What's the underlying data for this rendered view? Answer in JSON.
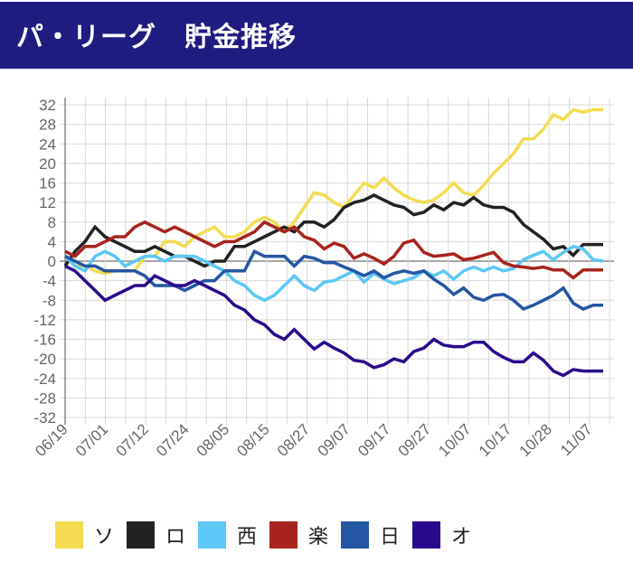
{
  "header": {
    "title": "パ・リーグ　貯金推移"
  },
  "chart_data": {
    "type": "line",
    "title": "パ・リーグ　貯金推移",
    "xlabel": "",
    "ylabel": "",
    "ylim": [
      -32,
      32
    ],
    "yticks": [
      32,
      28,
      24,
      20,
      16,
      12,
      8,
      4,
      0,
      -4,
      -8,
      -12,
      -16,
      -20,
      -24,
      -28,
      -32
    ],
    "xtick_labels": [
      "06/19",
      "07/01",
      "07/12",
      "07/24",
      "08/05",
      "08/15",
      "08/27",
      "09/07",
      "09/17",
      "09/27",
      "10/07",
      "10/17",
      "10/28",
      "11/07"
    ],
    "grid": true,
    "legend_position": "bottom",
    "series": [
      {
        "name": "ソ",
        "color": "#f5dc50",
        "values": [
          1,
          -1,
          -1,
          -2,
          -2.5,
          -2,
          -2,
          -2,
          1,
          1,
          4,
          4,
          3,
          5,
          6,
          7,
          5,
          5,
          6,
          8,
          9,
          8,
          6,
          8,
          11,
          14,
          13.5,
          12,
          11,
          13.5,
          16,
          15,
          17,
          15,
          13.5,
          12.5,
          12,
          12.5,
          14,
          16,
          14,
          13.5,
          15.5,
          18,
          20,
          22,
          25,
          25,
          27,
          30,
          29,
          31,
          30.5,
          31,
          31
        ]
      },
      {
        "name": "ロ",
        "color": "#222222",
        "values": [
          -1,
          2,
          4,
          7,
          5,
          4,
          3,
          2,
          2,
          3,
          2,
          1,
          1,
          0,
          -1,
          0,
          0,
          3,
          3,
          4,
          5,
          6,
          7,
          6,
          8,
          8,
          7,
          8.5,
          11,
          12,
          12.5,
          13.5,
          12.5,
          11.5,
          11,
          9.5,
          10,
          11.5,
          10.5,
          12,
          11.5,
          13,
          11.5,
          11,
          11,
          10,
          7.5,
          6,
          4.5,
          2.5,
          3,
          1.2,
          3.4,
          3.4,
          3.4
        ]
      },
      {
        "name": "西",
        "color": "#5bc8f5",
        "values": [
          1,
          -1,
          -2,
          1,
          2,
          1,
          -1,
          0,
          1,
          1,
          0,
          1,
          1,
          1,
          0,
          -1,
          -2,
          -4,
          -5,
          -7,
          -8,
          -7,
          -5,
          -3,
          -5,
          -6,
          -4.3,
          -4,
          -3,
          -2,
          -4.3,
          -2.5,
          -3.7,
          -4.6,
          -4,
          -3.4,
          -2,
          -3,
          -2,
          -3.7,
          -2,
          -1.2,
          -2,
          -1.2,
          -2,
          -1.5,
          0.3,
          1.2,
          2,
          0.3,
          1.8,
          3,
          2.5,
          0.3,
          0
        ]
      },
      {
        "name": "楽",
        "color": "#a8231c",
        "values": [
          2,
          1,
          3,
          3,
          4,
          5,
          5,
          7,
          8,
          7,
          6,
          7,
          6,
          5,
          4,
          3,
          4,
          4,
          5,
          6,
          8,
          7,
          6,
          7,
          5,
          4.3,
          2.5,
          3.7,
          3,
          0.6,
          1.5,
          0.6,
          -0.6,
          1,
          3.7,
          4.3,
          1.8,
          1,
          1.2,
          1.5,
          0.3,
          0.6,
          1.2,
          1.8,
          -0.3,
          -1,
          -1.2,
          -1.5,
          -1.2,
          -1.8,
          -1.8,
          -3.4,
          -1.8,
          -1.8,
          -1.8
        ]
      },
      {
        "name": "日",
        "color": "#2356a3",
        "values": [
          1,
          0,
          -1,
          -1,
          -2,
          -2,
          -2,
          -2,
          -3,
          -5,
          -5,
          -5,
          -6,
          -5,
          -4,
          -4,
          -2,
          -2,
          -2,
          2,
          1,
          1,
          1,
          -1,
          1,
          0.6,
          -0.3,
          -0.3,
          -1.2,
          -2,
          -3,
          -2,
          -3.4,
          -2.5,
          -2,
          -2.5,
          -2,
          -3.7,
          -5,
          -6.8,
          -5.5,
          -7.4,
          -8,
          -7,
          -6.8,
          -8,
          -9.8,
          -9,
          -8,
          -7,
          -5.5,
          -8.6,
          -9.8,
          -9,
          -9
        ]
      },
      {
        "name": "オ",
        "color": "#2a0a8c",
        "values": [
          -1,
          -2,
          -4,
          -6,
          -8,
          -7,
          -6,
          -5,
          -5,
          -3,
          -4,
          -5,
          -5,
          -4,
          -5,
          -6,
          -7,
          -9,
          -10,
          -12,
          -13,
          -15,
          -16,
          -14,
          -16,
          -18,
          -16.6,
          -17.8,
          -18.8,
          -20.3,
          -20.6,
          -21.8,
          -21.2,
          -20,
          -20.6,
          -18.5,
          -17.8,
          -16,
          -17.2,
          -17.5,
          -17.5,
          -16.6,
          -16.6,
          -18.5,
          -19.7,
          -20.6,
          -20.6,
          -18.8,
          -20.3,
          -22.5,
          -23.4,
          -22.2,
          -22.5,
          -22.5,
          -22.5
        ]
      }
    ]
  }
}
